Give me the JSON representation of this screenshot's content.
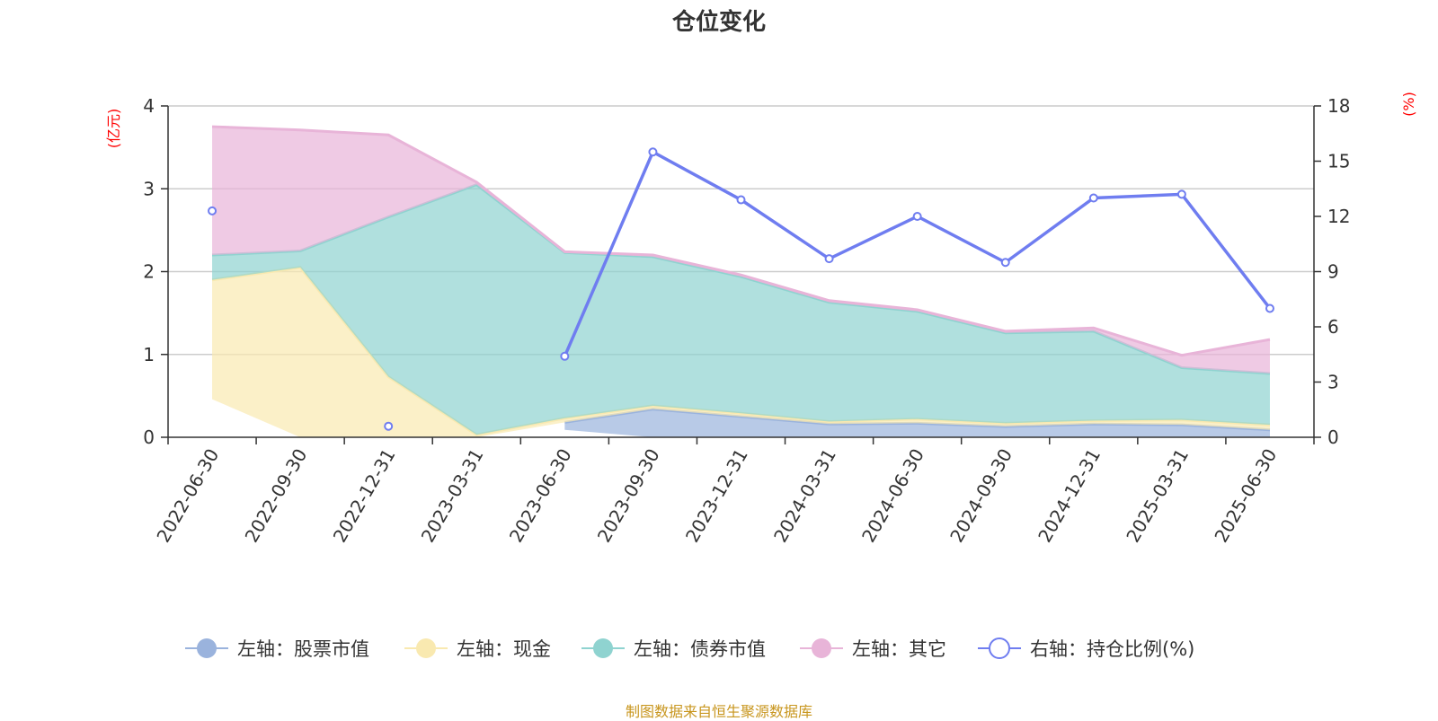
{
  "chart_data": {
    "type": "area",
    "title": "仓位变化",
    "x": [
      "2022-06-30",
      "2022-09-30",
      "2022-12-31",
      "2023-03-31",
      "2023-06-30",
      "2023-09-30",
      "2023-12-31",
      "2024-03-31",
      "2024-06-30",
      "2024-09-30",
      "2024-12-31",
      "2025-03-31",
      "2025-06-30"
    ],
    "left_axis": {
      "unit": "(亿元)",
      "ylim": [
        0,
        4
      ],
      "ticks": [
        0,
        1,
        2,
        3,
        4
      ]
    },
    "right_axis": {
      "unit": "(%)",
      "ylim": [
        0,
        18
      ],
      "ticks": [
        0,
        3,
        6,
        9,
        12,
        15,
        18
      ]
    },
    "stacked": true,
    "series": [
      {
        "name": "左轴：股票市值",
        "axis": "left",
        "color": "#9ab3dd",
        "values": [
          null,
          null,
          null,
          null,
          0.09,
          0.34,
          0.25,
          0.16,
          0.17,
          0.13,
          0.16,
          0.15,
          0.09
        ]
      },
      {
        "name": "左轴：现金",
        "axis": "left",
        "color": "#f9e9b0",
        "values": [
          1.44,
          2.05,
          0.73,
          0.03,
          0.05,
          0.04,
          0.04,
          0.03,
          0.05,
          0.04,
          0.04,
          0.06,
          0.06
        ]
      },
      {
        "name": "左轴：债券市值",
        "axis": "left",
        "color": "#8fd3d0",
        "values": [
          0.3,
          0.2,
          1.93,
          3.02,
          2.0,
          1.8,
          1.65,
          1.44,
          1.3,
          1.09,
          1.08,
          0.63,
          0.62
        ]
      },
      {
        "name": "左轴：其它",
        "axis": "left",
        "color": "#e8b4d8",
        "values": [
          1.55,
          1.46,
          0.99,
          0.03,
          0.01,
          0.02,
          0.02,
          0.02,
          0.02,
          0.02,
          0.04,
          0.15,
          0.41
        ]
      },
      {
        "name": "右轴：持仓比例(%)",
        "axis": "right",
        "color": "#6f7df0",
        "values": [
          null,
          null,
          null,
          null,
          4.4,
          15.5,
          12.9,
          9.7,
          12.0,
          9.5,
          13.0,
          13.2,
          7.0
        ],
        "isolated_points": [
          {
            "x": "2022-06-30",
            "y": 12.3
          },
          {
            "x": "2022-12-31",
            "y": 0.6
          }
        ]
      }
    ],
    "stack_base": [
      0.46,
      0,
      0,
      0,
      0.09,
      0,
      0,
      0,
      0,
      0,
      0,
      0,
      0
    ],
    "grid": true,
    "legend_position": "bottom"
  },
  "source_text": "制图数据来自恒生聚源数据库"
}
